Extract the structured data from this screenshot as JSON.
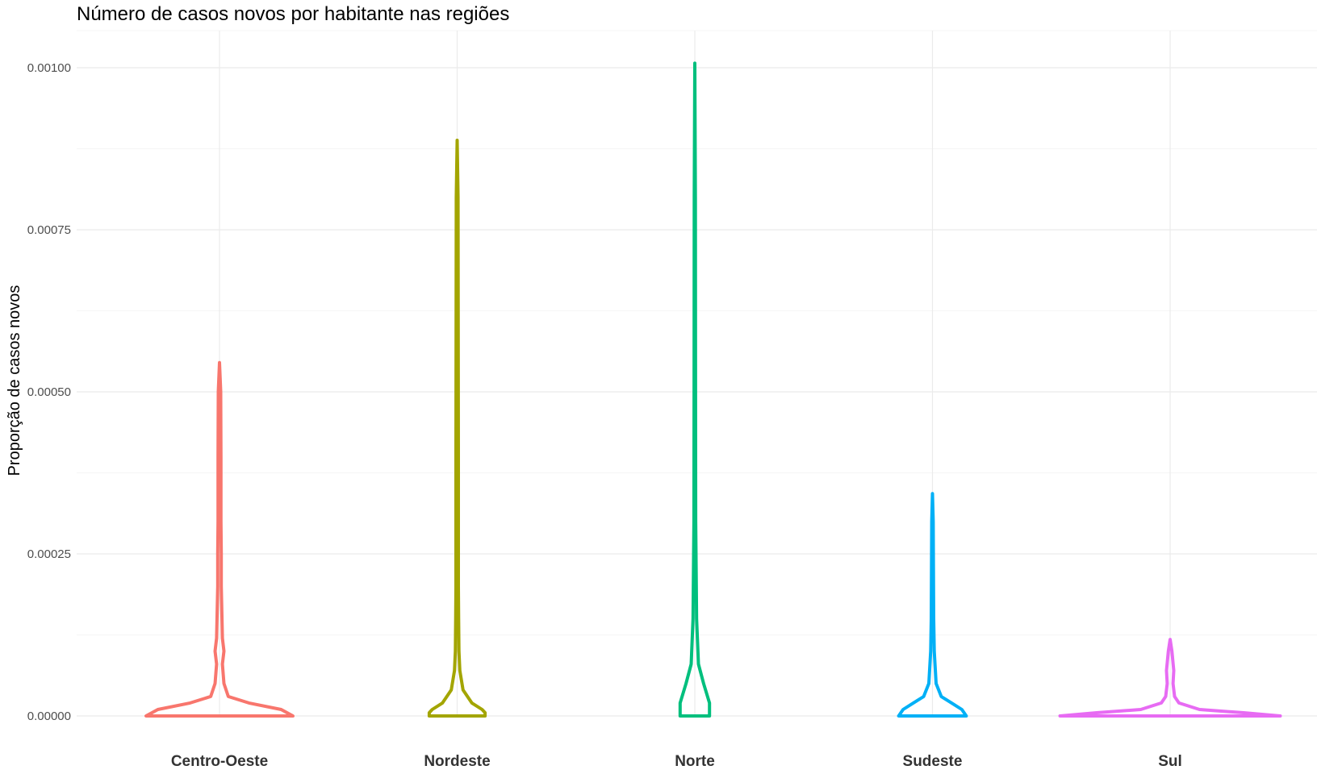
{
  "chart_data": {
    "type": "violin",
    "title": "Número de casos novos por habitante nas regiões",
    "xlabel": "",
    "ylabel": "Proporção de casos novos",
    "ylim": [
      0,
      0.00106
    ],
    "yticks": [
      0.0,
      0.00025,
      0.0005,
      0.00075,
      0.001
    ],
    "ytick_labels": [
      "0.00000",
      "0.00025",
      "0.00050",
      "0.00075",
      "0.00100"
    ],
    "grid": true,
    "legend": "none",
    "categories": [
      "Centro-Oeste",
      "Nordeste",
      "Norte",
      "Sudeste",
      "Sul"
    ],
    "series": [
      {
        "color": "#F8766D",
        "max": 0.000545,
        "min": 0.0,
        "profile": [
          [
            0.0,
            0.5
          ],
          [
            1e-05,
            0.42
          ],
          [
            2e-05,
            0.2
          ],
          [
            3e-05,
            0.06
          ],
          [
            5e-05,
            0.03
          ],
          [
            8e-05,
            0.02
          ],
          [
            0.0001,
            0.03
          ],
          [
            0.00012,
            0.02
          ],
          [
            0.0002,
            0.012
          ],
          [
            0.00025,
            0.012
          ],
          [
            0.0003,
            0.01
          ],
          [
            0.0004,
            0.01
          ],
          [
            0.0005,
            0.008
          ],
          [
            0.000545,
            0.0
          ]
        ]
      },
      {
        "color": "#A3A500",
        "max": 0.000888,
        "min": 0.0,
        "profile": [
          [
            0.0,
            0.19
          ],
          [
            5e-06,
            0.19
          ],
          [
            1e-05,
            0.17
          ],
          [
            2e-05,
            0.1
          ],
          [
            4e-05,
            0.04
          ],
          [
            7e-05,
            0.018
          ],
          [
            0.0001,
            0.012
          ],
          [
            0.00015,
            0.01
          ],
          [
            0.0002,
            0.008
          ],
          [
            0.0004,
            0.008
          ],
          [
            0.0006,
            0.007
          ],
          [
            0.0008,
            0.006
          ],
          [
            0.000888,
            0.0
          ]
        ]
      },
      {
        "color": "#00BF7D",
        "max": 0.001007,
        "min": 0.0,
        "profile": [
          [
            0.0,
            0.1
          ],
          [
            2e-05,
            0.1
          ],
          [
            5e-05,
            0.06
          ],
          [
            8e-05,
            0.025
          ],
          [
            0.00015,
            0.012
          ],
          [
            0.0003,
            0.006
          ],
          [
            0.0005,
            0.005
          ],
          [
            0.0008,
            0.004
          ],
          [
            0.001007,
            0.0
          ]
        ]
      },
      {
        "color": "#00B0F6",
        "max": 0.000343,
        "min": 0.0,
        "profile": [
          [
            0.0,
            0.23
          ],
          [
            1e-05,
            0.2
          ],
          [
            2e-05,
            0.13
          ],
          [
            3e-05,
            0.06
          ],
          [
            5e-05,
            0.025
          ],
          [
            0.0001,
            0.012
          ],
          [
            0.00015,
            0.008
          ],
          [
            0.0002,
            0.007
          ],
          [
            0.0003,
            0.005
          ],
          [
            0.000343,
            0.0
          ]
        ]
      },
      {
        "color": "#E76BF3",
        "max": 0.000118,
        "min": 0.0,
        "profile": [
          [
            0.0,
            0.75
          ],
          [
            5e-06,
            0.5
          ],
          [
            1e-05,
            0.2
          ],
          [
            2e-05,
            0.06
          ],
          [
            3e-05,
            0.03
          ],
          [
            5e-05,
            0.02
          ],
          [
            7e-05,
            0.025
          ],
          [
            0.0001,
            0.012
          ],
          [
            0.000118,
            0.0
          ]
        ]
      }
    ]
  }
}
